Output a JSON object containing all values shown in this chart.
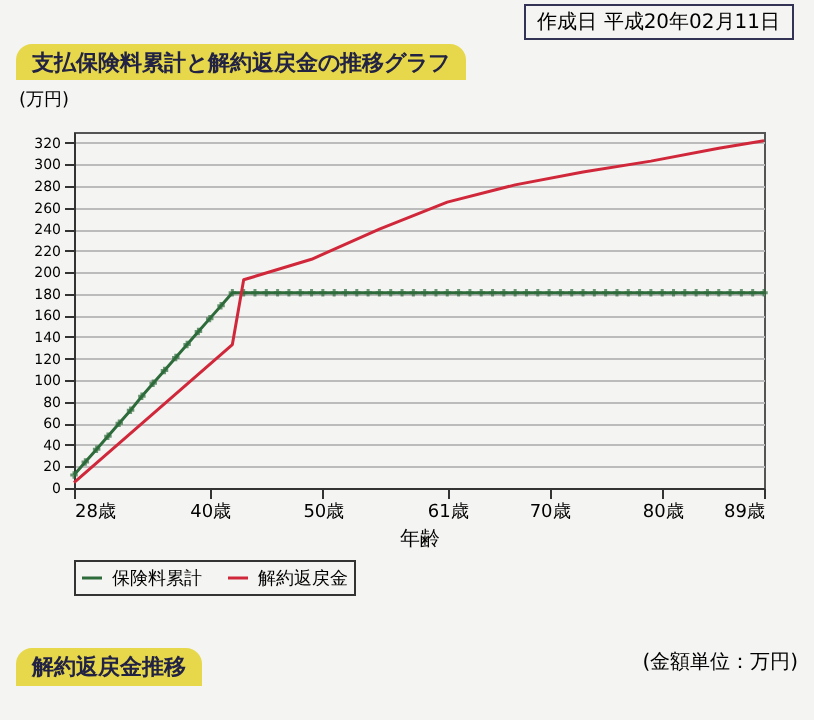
{
  "chart_data": {
    "type": "line",
    "title": "支払保険料累計と解約返戻金の推移グラフ",
    "ylabel": "(万円)",
    "xlabel": "年齢",
    "annotations": [
      "作成日 平成20年02月11日",
      "解約返戻金推移",
      "(金額単位：万円)"
    ],
    "xlim": [
      28,
      89
    ],
    "xticks": [
      {
        "value": 28,
        "label": "28歳"
      },
      {
        "value": 40,
        "label": "40歳"
      },
      {
        "value": 50,
        "label": "50歳"
      },
      {
        "value": 61,
        "label": "61歳"
      },
      {
        "value": 70,
        "label": "70歳"
      },
      {
        "value": 80,
        "label": "80歳"
      },
      {
        "value": 89,
        "label": "89歳"
      }
    ],
    "ylim": [
      0,
      330
    ],
    "yticks": [
      0,
      20,
      40,
      60,
      80,
      100,
      120,
      140,
      160,
      180,
      200,
      220,
      240,
      260,
      280,
      300,
      320
    ],
    "grid": "y",
    "legend": "bottom",
    "series": [
      {
        "name": "保険料累計",
        "color": "#2e6b3a",
        "marker": "cross",
        "x": [
          28,
          29,
          30,
          31,
          32,
          33,
          34,
          35,
          36,
          37,
          38,
          39,
          40,
          41,
          42,
          43,
          44,
          45,
          46,
          47,
          48,
          49,
          50,
          51,
          52,
          53,
          54,
          55,
          56,
          57,
          58,
          59,
          60,
          61,
          62,
          63,
          64,
          65,
          66,
          67,
          68,
          69,
          70,
          71,
          72,
          73,
          74,
          75,
          76,
          77,
          78,
          79,
          80,
          81,
          82,
          83,
          84,
          85,
          86,
          87,
          88,
          89
        ],
        "values": [
          12,
          24,
          36,
          48,
          60,
          72,
          85,
          97,
          109,
          121,
          133,
          145,
          157,
          169,
          181,
          181,
          181,
          181,
          181,
          181,
          181,
          181,
          181,
          181,
          181,
          181,
          181,
          181,
          181,
          181,
          181,
          181,
          181,
          181,
          181,
          181,
          181,
          181,
          181,
          181,
          181,
          181,
          181,
          181,
          181,
          181,
          181,
          181,
          181,
          181,
          181,
          181,
          181,
          181,
          181,
          181,
          181,
          181,
          181,
          181,
          181,
          181
        ]
      },
      {
        "name": "解約返戻金",
        "color": "#d0283a",
        "x": [
          28,
          42,
          43,
          49,
          55,
          61,
          67,
          73,
          79,
          85,
          89
        ],
        "values": [
          5,
          133,
          193,
          212,
          240,
          265,
          281,
          293,
          303,
          315,
          322
        ]
      }
    ]
  }
}
